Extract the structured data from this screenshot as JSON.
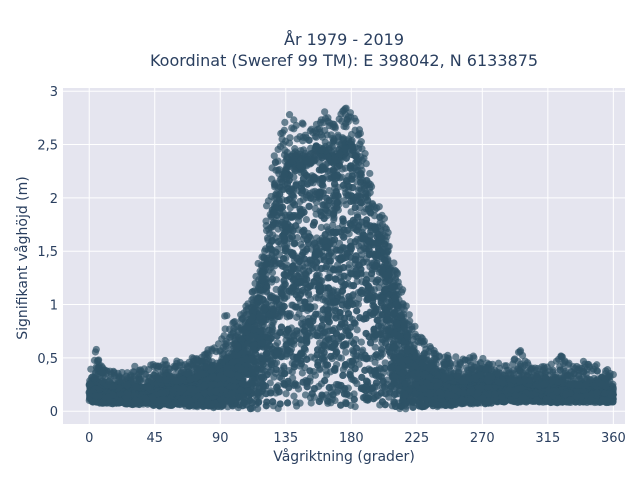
{
  "chart_data": {
    "type": "scatter",
    "title_lines": [
      "År 1979 - 2019",
      "Koordinat (Sweref 99 TM): E 398042, N 6133875"
    ],
    "xlabel": "Vågriktning (grader)",
    "ylabel": "Signifikant våghöjd (m)",
    "xlim": [
      -18,
      368
    ],
    "ylim": [
      -0.12,
      3.03
    ],
    "x_ticks": [
      0,
      45,
      90,
      135,
      180,
      225,
      270,
      315,
      360
    ],
    "x_tick_labels": [
      "0",
      "45",
      "90",
      "135",
      "180",
      "225",
      "270",
      "315",
      "360"
    ],
    "y_ticks": [
      0,
      0.5,
      1,
      1.5,
      2,
      2.5,
      3
    ],
    "y_tick_labels": [
      "0",
      "0,5",
      "1",
      "1,5",
      "2",
      "2,5",
      "3"
    ],
    "grid": true,
    "legend": "none",
    "marker_color": "#2e5266",
    "marker_opacity": 0.7,
    "plot_background": "#e5e5ef",
    "series": [
      {
        "x": [
          0,
          5,
          10,
          15,
          20,
          25,
          30,
          35,
          40,
          45,
          50,
          55,
          60,
          65,
          70,
          75,
          80,
          85,
          90,
          95,
          100,
          105,
          110,
          115,
          120,
          125,
          130,
          135,
          140,
          145,
          150,
          155,
          160,
          165,
          170,
          175,
          180,
          185,
          190,
          195,
          200,
          205,
          210,
          215,
          220,
          225,
          230,
          235,
          240,
          245,
          250,
          255,
          260,
          265,
          270,
          275,
          280,
          285,
          290,
          295,
          300,
          305,
          310,
          315,
          320,
          325,
          330,
          335,
          340,
          345,
          350,
          355,
          360
        ],
        "y_min": [
          0.08,
          0.08,
          0.07,
          0.07,
          0.07,
          0.07,
          0.06,
          0.06,
          0.06,
          0.05,
          0.05,
          0.05,
          0.05,
          0.05,
          0.04,
          0.04,
          0.04,
          0.03,
          0.03,
          0.03,
          0.02,
          0.02,
          0.02,
          0.02,
          0.02,
          0.02,
          0.02,
          0.02,
          0.02,
          0.02,
          0.02,
          0.02,
          0.02,
          0.02,
          0.02,
          0.02,
          0.02,
          0.02,
          0.02,
          0.02,
          0.02,
          0.02,
          0.02,
          0.02,
          0.02,
          0.03,
          0.03,
          0.04,
          0.04,
          0.05,
          0.05,
          0.06,
          0.06,
          0.07,
          0.07,
          0.07,
          0.08,
          0.08,
          0.08,
          0.08,
          0.08,
          0.08,
          0.08,
          0.08,
          0.08,
          0.08,
          0.08,
          0.08,
          0.08,
          0.08,
          0.08,
          0.08,
          0.08
        ],
        "y_max": [
          0.35,
          0.6,
          0.4,
          0.38,
          0.36,
          0.38,
          0.42,
          0.45,
          0.42,
          0.45,
          0.5,
          0.45,
          0.48,
          0.45,
          0.5,
          0.52,
          0.58,
          0.62,
          0.72,
          1.0,
          0.85,
          0.95,
          1.05,
          1.3,
          1.75,
          2.3,
          2.55,
          2.75,
          2.82,
          2.72,
          2.68,
          2.75,
          2.85,
          2.75,
          2.72,
          2.85,
          2.88,
          2.7,
          2.4,
          2.1,
          1.95,
          1.7,
          1.35,
          1.2,
          0.9,
          0.78,
          0.7,
          0.62,
          0.55,
          0.55,
          0.52,
          0.5,
          0.48,
          0.58,
          0.52,
          0.45,
          0.48,
          0.45,
          0.42,
          0.6,
          0.48,
          0.4,
          0.42,
          0.45,
          0.45,
          0.55,
          0.45,
          0.42,
          0.5,
          0.42,
          0.45,
          0.4,
          0.38
        ],
        "y_dense_max": [
          0.25,
          0.28,
          0.24,
          0.24,
          0.22,
          0.22,
          0.22,
          0.22,
          0.22,
          0.24,
          0.26,
          0.26,
          0.28,
          0.28,
          0.3,
          0.32,
          0.36,
          0.38,
          0.42,
          0.5,
          0.55,
          0.65,
          0.8,
          1.0,
          1.3,
          1.75,
          2.05,
          2.25,
          2.35,
          2.3,
          2.3,
          2.35,
          2.45,
          2.35,
          2.35,
          2.45,
          2.5,
          2.3,
          2.05,
          1.75,
          1.6,
          1.35,
          1.05,
          0.85,
          0.62,
          0.5,
          0.42,
          0.38,
          0.34,
          0.3,
          0.28,
          0.28,
          0.28,
          0.3,
          0.3,
          0.28,
          0.28,
          0.26,
          0.25,
          0.28,
          0.26,
          0.24,
          0.24,
          0.25,
          0.25,
          0.26,
          0.25,
          0.24,
          0.24,
          0.24,
          0.23,
          0.23,
          0.22
        ]
      }
    ]
  }
}
